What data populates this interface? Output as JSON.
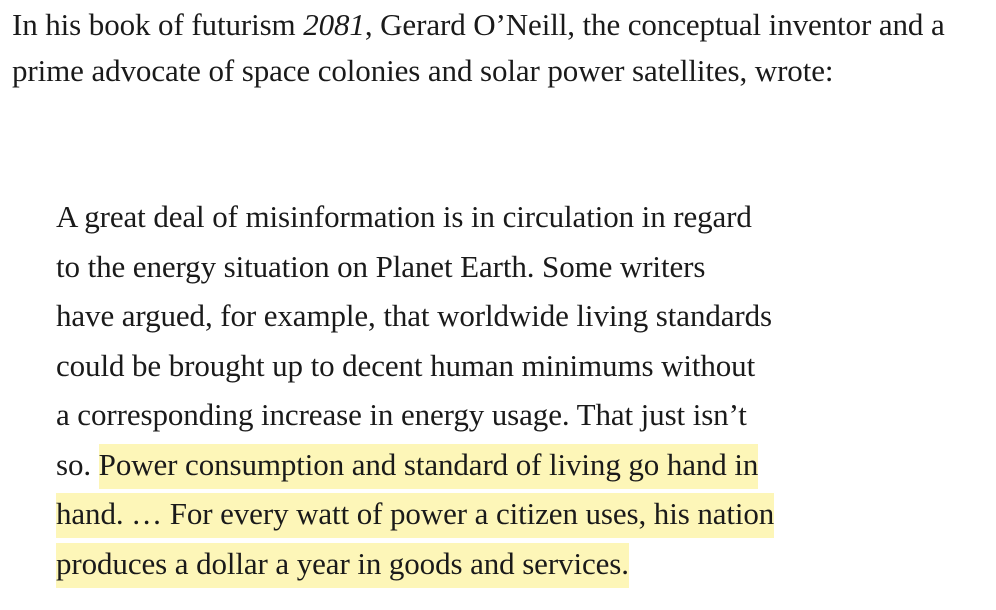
{
  "intro": {
    "prefix": "In his book of futurism ",
    "book_title": "2081",
    "suffix": ", Gerard O’Neill, the conceptual inventor and a prime advocate of space colonies and solar power satellites, wrote:"
  },
  "quote": {
    "lines": [
      "A great deal of misinformation is in circulation in regard",
      "to the energy situation on Planet Earth. Some writers",
      "have argued, for example, that worldwide living standards",
      "could be brought up to decent human minimums without",
      "a corresponding increase in energy usage. That just isn’t"
    ],
    "line6_plain": "so. ",
    "highlighted_lines": [
      "Power consumption and standard of living go hand in",
      "hand. … For every watt of power a citizen uses, his nation",
      "produces a dollar a year in goods and services."
    ],
    "highlight_color": "#fdf6b8"
  }
}
